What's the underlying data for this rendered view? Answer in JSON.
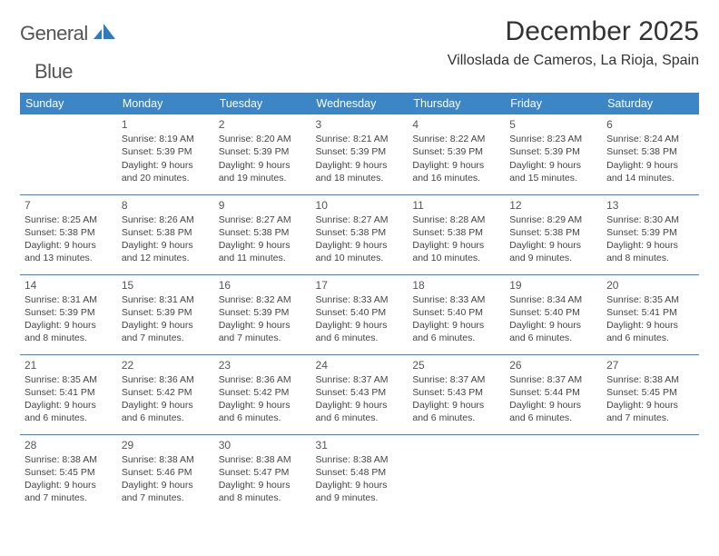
{
  "brand": {
    "word1": "General",
    "word2": "Blue"
  },
  "title": "December 2025",
  "location": "Villoslada de Cameros, La Rioja, Spain",
  "colors": {
    "header_bg": "#3d86c6",
    "header_text": "#ffffff",
    "rule": "#3d86c6",
    "brand_blue": "#2f7bbf"
  },
  "weekdays": [
    "Sunday",
    "Monday",
    "Tuesday",
    "Wednesday",
    "Thursday",
    "Friday",
    "Saturday"
  ],
  "weeks": [
    [
      null,
      {
        "day": "1",
        "sunrise": "Sunrise: 8:19 AM",
        "sunset": "Sunset: 5:39 PM",
        "d1": "Daylight: 9 hours",
        "d2": "and 20 minutes."
      },
      {
        "day": "2",
        "sunrise": "Sunrise: 8:20 AM",
        "sunset": "Sunset: 5:39 PM",
        "d1": "Daylight: 9 hours",
        "d2": "and 19 minutes."
      },
      {
        "day": "3",
        "sunrise": "Sunrise: 8:21 AM",
        "sunset": "Sunset: 5:39 PM",
        "d1": "Daylight: 9 hours",
        "d2": "and 18 minutes."
      },
      {
        "day": "4",
        "sunrise": "Sunrise: 8:22 AM",
        "sunset": "Sunset: 5:39 PM",
        "d1": "Daylight: 9 hours",
        "d2": "and 16 minutes."
      },
      {
        "day": "5",
        "sunrise": "Sunrise: 8:23 AM",
        "sunset": "Sunset: 5:39 PM",
        "d1": "Daylight: 9 hours",
        "d2": "and 15 minutes."
      },
      {
        "day": "6",
        "sunrise": "Sunrise: 8:24 AM",
        "sunset": "Sunset: 5:38 PM",
        "d1": "Daylight: 9 hours",
        "d2": "and 14 minutes."
      }
    ],
    [
      {
        "day": "7",
        "sunrise": "Sunrise: 8:25 AM",
        "sunset": "Sunset: 5:38 PM",
        "d1": "Daylight: 9 hours",
        "d2": "and 13 minutes."
      },
      {
        "day": "8",
        "sunrise": "Sunrise: 8:26 AM",
        "sunset": "Sunset: 5:38 PM",
        "d1": "Daylight: 9 hours",
        "d2": "and 12 minutes."
      },
      {
        "day": "9",
        "sunrise": "Sunrise: 8:27 AM",
        "sunset": "Sunset: 5:38 PM",
        "d1": "Daylight: 9 hours",
        "d2": "and 11 minutes."
      },
      {
        "day": "10",
        "sunrise": "Sunrise: 8:27 AM",
        "sunset": "Sunset: 5:38 PM",
        "d1": "Daylight: 9 hours",
        "d2": "and 10 minutes."
      },
      {
        "day": "11",
        "sunrise": "Sunrise: 8:28 AM",
        "sunset": "Sunset: 5:38 PM",
        "d1": "Daylight: 9 hours",
        "d2": "and 10 minutes."
      },
      {
        "day": "12",
        "sunrise": "Sunrise: 8:29 AM",
        "sunset": "Sunset: 5:38 PM",
        "d1": "Daylight: 9 hours",
        "d2": "and 9 minutes."
      },
      {
        "day": "13",
        "sunrise": "Sunrise: 8:30 AM",
        "sunset": "Sunset: 5:39 PM",
        "d1": "Daylight: 9 hours",
        "d2": "and 8 minutes."
      }
    ],
    [
      {
        "day": "14",
        "sunrise": "Sunrise: 8:31 AM",
        "sunset": "Sunset: 5:39 PM",
        "d1": "Daylight: 9 hours",
        "d2": "and 8 minutes."
      },
      {
        "day": "15",
        "sunrise": "Sunrise: 8:31 AM",
        "sunset": "Sunset: 5:39 PM",
        "d1": "Daylight: 9 hours",
        "d2": "and 7 minutes."
      },
      {
        "day": "16",
        "sunrise": "Sunrise: 8:32 AM",
        "sunset": "Sunset: 5:39 PM",
        "d1": "Daylight: 9 hours",
        "d2": "and 7 minutes."
      },
      {
        "day": "17",
        "sunrise": "Sunrise: 8:33 AM",
        "sunset": "Sunset: 5:40 PM",
        "d1": "Daylight: 9 hours",
        "d2": "and 6 minutes."
      },
      {
        "day": "18",
        "sunrise": "Sunrise: 8:33 AM",
        "sunset": "Sunset: 5:40 PM",
        "d1": "Daylight: 9 hours",
        "d2": "and 6 minutes."
      },
      {
        "day": "19",
        "sunrise": "Sunrise: 8:34 AM",
        "sunset": "Sunset: 5:40 PM",
        "d1": "Daylight: 9 hours",
        "d2": "and 6 minutes."
      },
      {
        "day": "20",
        "sunrise": "Sunrise: 8:35 AM",
        "sunset": "Sunset: 5:41 PM",
        "d1": "Daylight: 9 hours",
        "d2": "and 6 minutes."
      }
    ],
    [
      {
        "day": "21",
        "sunrise": "Sunrise: 8:35 AM",
        "sunset": "Sunset: 5:41 PM",
        "d1": "Daylight: 9 hours",
        "d2": "and 6 minutes."
      },
      {
        "day": "22",
        "sunrise": "Sunrise: 8:36 AM",
        "sunset": "Sunset: 5:42 PM",
        "d1": "Daylight: 9 hours",
        "d2": "and 6 minutes."
      },
      {
        "day": "23",
        "sunrise": "Sunrise: 8:36 AM",
        "sunset": "Sunset: 5:42 PM",
        "d1": "Daylight: 9 hours",
        "d2": "and 6 minutes."
      },
      {
        "day": "24",
        "sunrise": "Sunrise: 8:37 AM",
        "sunset": "Sunset: 5:43 PM",
        "d1": "Daylight: 9 hours",
        "d2": "and 6 minutes."
      },
      {
        "day": "25",
        "sunrise": "Sunrise: 8:37 AM",
        "sunset": "Sunset: 5:43 PM",
        "d1": "Daylight: 9 hours",
        "d2": "and 6 minutes."
      },
      {
        "day": "26",
        "sunrise": "Sunrise: 8:37 AM",
        "sunset": "Sunset: 5:44 PM",
        "d1": "Daylight: 9 hours",
        "d2": "and 6 minutes."
      },
      {
        "day": "27",
        "sunrise": "Sunrise: 8:38 AM",
        "sunset": "Sunset: 5:45 PM",
        "d1": "Daylight: 9 hours",
        "d2": "and 7 minutes."
      }
    ],
    [
      {
        "day": "28",
        "sunrise": "Sunrise: 8:38 AM",
        "sunset": "Sunset: 5:45 PM",
        "d1": "Daylight: 9 hours",
        "d2": "and 7 minutes."
      },
      {
        "day": "29",
        "sunrise": "Sunrise: 8:38 AM",
        "sunset": "Sunset: 5:46 PM",
        "d1": "Daylight: 9 hours",
        "d2": "and 7 minutes."
      },
      {
        "day": "30",
        "sunrise": "Sunrise: 8:38 AM",
        "sunset": "Sunset: 5:47 PM",
        "d1": "Daylight: 9 hours",
        "d2": "and 8 minutes."
      },
      {
        "day": "31",
        "sunrise": "Sunrise: 8:38 AM",
        "sunset": "Sunset: 5:48 PM",
        "d1": "Daylight: 9 hours",
        "d2": "and 9 minutes."
      },
      null,
      null,
      null
    ]
  ]
}
